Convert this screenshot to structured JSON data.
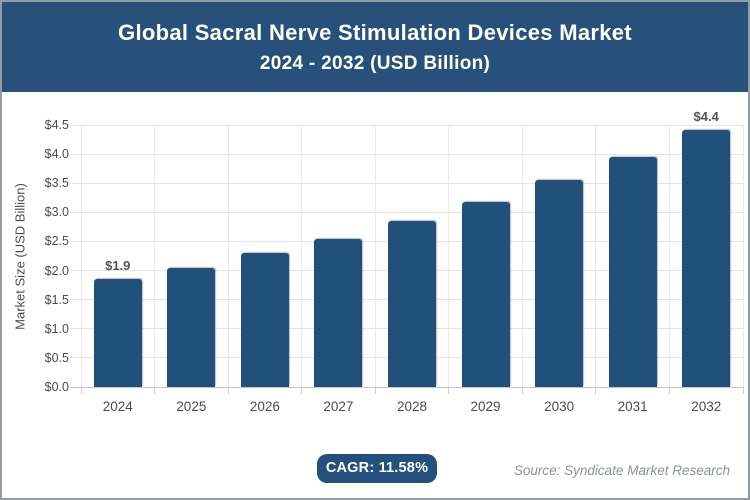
{
  "header": {
    "title_line1": "Global Sacral Nerve Stimulation Devices Market",
    "title_line2": "2024 - 2032 (USD Billion)"
  },
  "chart_data": {
    "type": "bar",
    "title": "Global Sacral Nerve Stimulation Devices Market 2024 - 2032 (USD Billion)",
    "categories": [
      "2024",
      "2025",
      "2026",
      "2027",
      "2028",
      "2029",
      "2030",
      "2031",
      "2032"
    ],
    "values": [
      1.85,
      2.05,
      2.3,
      2.55,
      2.85,
      3.18,
      3.55,
      3.95,
      4.42
    ],
    "point_labels": [
      "$1.9",
      "",
      "",
      "",
      "",
      "",
      "",
      "",
      "$4.4"
    ],
    "xlabel": "",
    "ylabel": "Market Size (USD Billion)",
    "ylim": [
      0,
      4.5
    ],
    "ytick_step": 0.5,
    "ytick_prefix": "$",
    "grid": true,
    "legend_position": "none",
    "bar_color": "#21507a"
  },
  "footer": {
    "cagr_label": "CAGR: 11.58%",
    "source": "Source: Syndicate Market Research"
  },
  "colors": {
    "header_background": "#27517b",
    "bar": "#21507a",
    "badge_background": "#24517b",
    "gridline": "#e4e4e4",
    "axis_text": "#4c4c4c",
    "source_text": "#8b9396"
  }
}
